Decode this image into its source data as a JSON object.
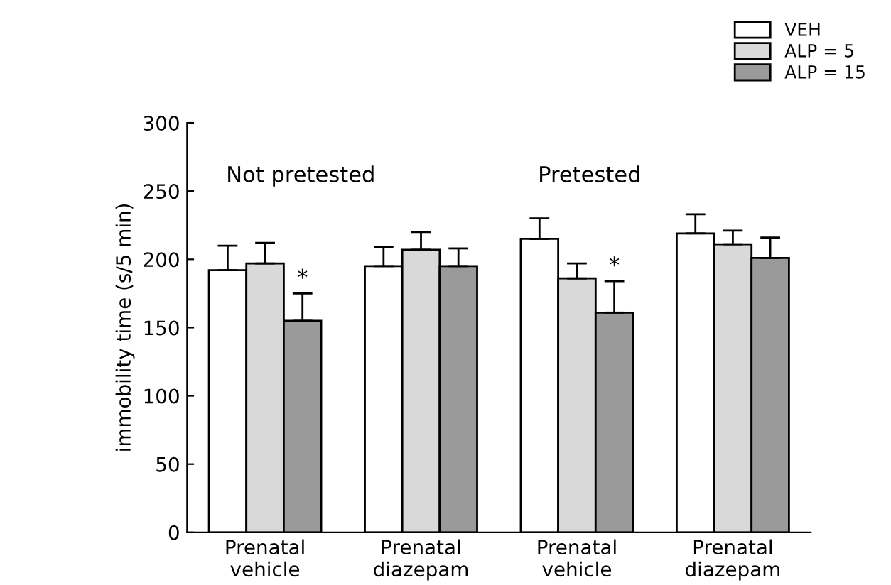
{
  "chart_data": {
    "type": "bar",
    "ylabel": "immobility time (s/5 min)",
    "categories": [
      "Prenatal\nvehicle",
      "Prenatal\ndiazepam",
      "Prenatal\nvehicle",
      "Prenatal\ndiazepam"
    ],
    "series": [
      {
        "name": "VEH",
        "color": "#ffffff",
        "values": [
          192,
          195,
          215,
          219
        ],
        "errors": [
          [
            192,
            210
          ],
          [
            195,
            209
          ],
          [
            215,
            230
          ],
          [
            219,
            233
          ]
        ]
      },
      {
        "name": "ALP = 5",
        "color": "#d9d9d9",
        "values": [
          197,
          207,
          186,
          211
        ],
        "errors": [
          [
            197,
            212
          ],
          [
            207,
            220
          ],
          [
            186,
            197
          ],
          [
            211,
            221
          ]
        ]
      },
      {
        "name": "ALP = 15",
        "color": "#9a9a9a",
        "values": [
          155,
          195,
          161,
          201
        ],
        "errors": [
          [
            155,
            175
          ],
          [
            195,
            208
          ],
          [
            161,
            184
          ],
          [
            201,
            216
          ]
        ],
        "value_labels": [
          "*",
          null,
          "*",
          null
        ]
      }
    ],
    "annotations": [
      "Not pretested",
      "Pretested"
    ],
    "ylim": [
      0,
      300
    ],
    "yticks": [
      0,
      50,
      100,
      150,
      200,
      250,
      300
    ],
    "grid": false,
    "legend": "top right"
  }
}
